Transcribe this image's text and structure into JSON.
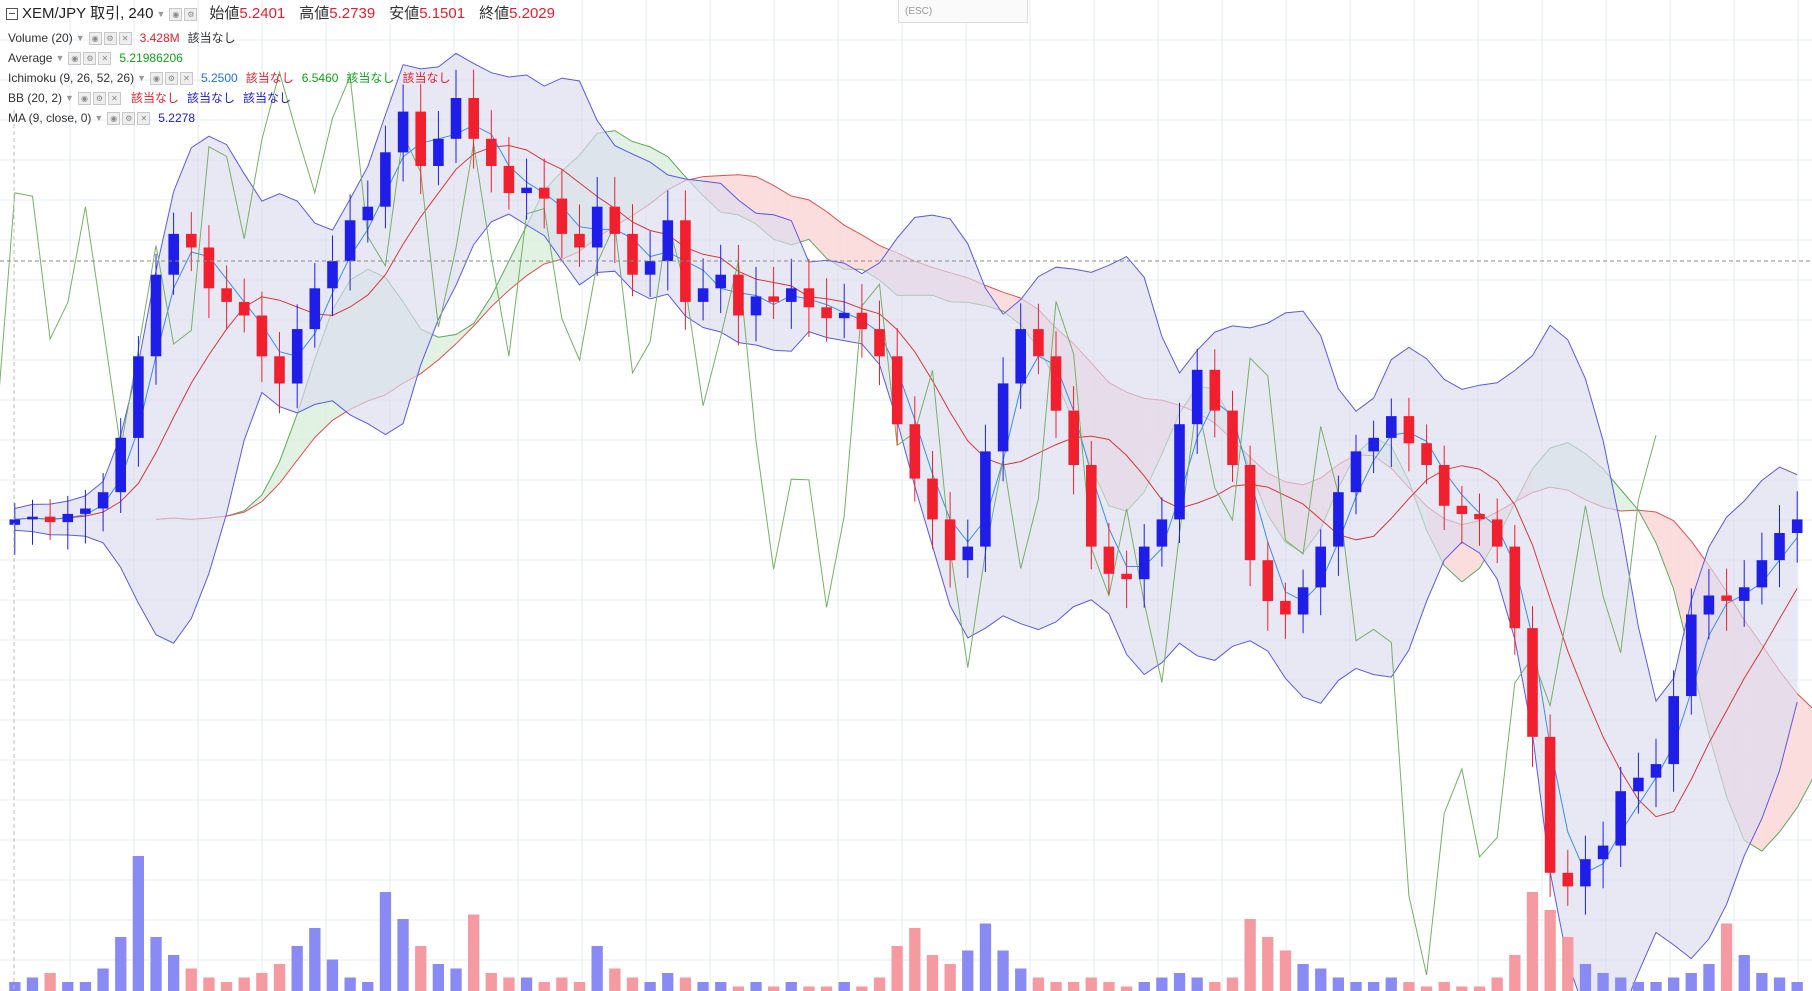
{
  "header": {
    "symbol": "XEM/JPY 取引, 240",
    "open_label": "始値",
    "open_value": "5.2401",
    "high_label": "高値",
    "high_value": "5.2739",
    "low_label": "安値",
    "low_value": "5.1501",
    "close_label": "終値",
    "close_value": "5.2029"
  },
  "esc_hint": "(ESC)",
  "indicators": {
    "volume": {
      "name": "Volume (20)",
      "v1": "3.428M",
      "v2": "該当なし"
    },
    "average": {
      "name": "Average",
      "v1": "5.21986206"
    },
    "ichimoku": {
      "name": "Ichimoku (9, 26, 52, 26)",
      "v1": "5.2500",
      "v2": "該当なし",
      "v3": "6.5460",
      "v4": "該当なし",
      "v5": "該当なし"
    },
    "bb": {
      "name": "BB (20, 2)",
      "v1": "該当なし",
      "v2": "該当なし",
      "v3": "該当なし"
    },
    "ma": {
      "name": "MA (9, close, 0)",
      "v1": "5.2278"
    }
  },
  "colors": {
    "up": "#1e1ee8",
    "down": "#f0202e",
    "bb_fill": "#dcdcf0",
    "bb_line": "#5a5ae0",
    "cloud_bull": "#d9efdc",
    "cloud_bear": "#fbd5d5",
    "chikou": "#77b066",
    "kijun": "#d23a3a",
    "tenkan": "#3a8ee6",
    "vol_up": "#8a8af5",
    "vol_down": "#f59aa0"
  },
  "chart_data": {
    "type": "candlestick",
    "title": "XEM/JPY 取引, 240",
    "indicators": [
      "Volume (20)",
      "Average",
      "Ichimoku (9, 26, 52, 26)",
      "BB (20, 2)",
      "MA (9, close, 0)"
    ],
    "current_ohlc": {
      "open": 5.2401,
      "high": 5.2739,
      "low": 5.1501,
      "close": 5.2029
    },
    "price_range": [
      3.8,
      7.0
    ],
    "close_series": [
      5.2,
      5.21,
      5.19,
      5.22,
      5.24,
      5.3,
      5.5,
      5.8,
      6.1,
      6.25,
      6.2,
      6.05,
      6.0,
      5.95,
      5.8,
      5.7,
      5.9,
      6.05,
      6.15,
      6.3,
      6.35,
      6.55,
      6.7,
      6.5,
      6.6,
      6.75,
      6.6,
      6.5,
      6.4,
      6.42,
      6.38,
      6.25,
      6.2,
      6.35,
      6.25,
      6.1,
      6.15,
      6.3,
      6.0,
      6.05,
      6.1,
      5.95,
      6.02,
      6.0,
      6.05,
      5.98,
      5.94,
      5.96,
      5.9,
      5.8,
      5.55,
      5.35,
      5.2,
      5.05,
      5.1,
      5.45,
      5.7,
      5.9,
      5.8,
      5.6,
      5.4,
      5.1,
      5.0,
      4.98,
      5.1,
      5.2,
      5.55,
      5.75,
      5.6,
      5.4,
      5.05,
      4.9,
      4.85,
      4.95,
      5.1,
      5.3,
      5.45,
      5.5,
      5.58,
      5.48,
      5.4,
      5.25,
      5.22,
      5.2,
      5.1,
      4.8,
      4.4,
      3.9,
      3.85,
      3.95,
      4.0,
      4.2,
      4.25,
      4.3,
      4.55,
      4.85,
      4.92,
      4.9,
      4.95,
      5.05,
      5.15,
      5.2
    ],
    "volume_series": [
      0.2,
      0.3,
      0.4,
      0.2,
      0.2,
      0.5,
      1.2,
      3.0,
      1.2,
      0.8,
      0.5,
      0.3,
      0.2,
      0.3,
      0.4,
      0.6,
      1.0,
      1.4,
      0.7,
      0.3,
      0.2,
      2.2,
      1.6,
      1.0,
      0.6,
      0.5,
      1.7,
      0.4,
      0.3,
      0.3,
      0.2,
      0.3,
      0.2,
      1.0,
      0.5,
      0.3,
      0.2,
      0.4,
      0.3,
      0.2,
      0.2,
      0.1,
      0.2,
      0.1,
      0.2,
      0.1,
      0.1,
      0.2,
      0.1,
      0.3,
      1.0,
      1.4,
      0.8,
      0.6,
      0.9,
      1.5,
      0.9,
      0.5,
      0.3,
      0.2,
      0.2,
      0.3,
      0.2,
      0.1,
      0.2,
      0.3,
      0.4,
      0.3,
      0.2,
      0.3,
      1.6,
      1.2,
      0.9,
      0.6,
      0.5,
      0.3,
      0.2,
      0.2,
      0.3,
      0.2,
      0.1,
      0.2,
      0.1,
      0.1,
      0.3,
      0.8,
      2.2,
      1.8,
      1.2,
      0.6,
      0.4,
      0.3,
      0.2,
      0.2,
      0.3,
      0.4,
      0.6,
      1.5,
      0.8,
      0.4,
      0.3,
      0.2
    ]
  }
}
